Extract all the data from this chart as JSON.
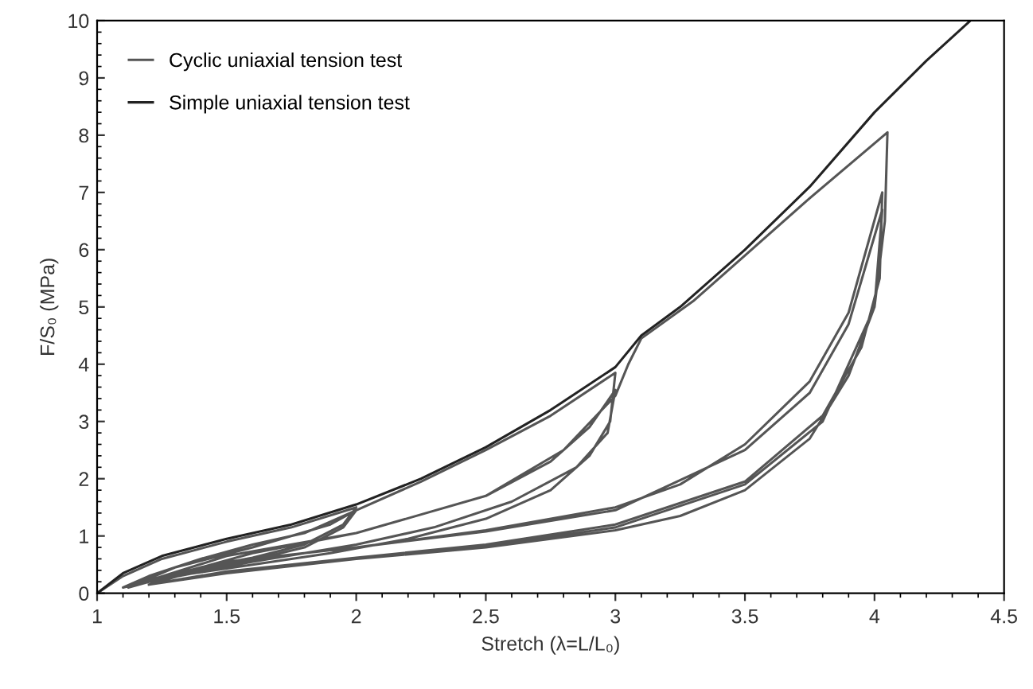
{
  "chart_data": {
    "type": "line",
    "xlabel": "Stretch (λ=L/L₀)",
    "ylabel": "F/S₀ (MPa)",
    "xlim": [
      1,
      4.5
    ],
    "ylim": [
      0,
      10
    ],
    "xticks": [
      1,
      1.5,
      2,
      2.5,
      3,
      3.5,
      4,
      4.5
    ],
    "yticks": [
      0,
      1,
      2,
      3,
      4,
      5,
      6,
      7,
      8,
      9,
      10
    ],
    "grid": false,
    "legend": "top left",
    "marker": "none",
    "line_style": "solid",
    "series": [
      {
        "name": "Cyclic uniaxial tension test",
        "color": "#555555",
        "x": [
          1,
          1.1,
          1.25,
          1.5,
          1.75,
          2,
          1.95,
          1.8,
          1.6,
          1.4,
          1.2,
          1.1,
          1.2,
          1.4,
          1.6,
          1.8,
          2,
          1.95,
          1.8,
          1.6,
          1.4,
          1.2,
          1.12,
          1.3,
          1.6,
          1.9,
          2,
          2.25,
          2.5,
          2.75,
          3,
          2.98,
          2.9,
          2.75,
          2.5,
          2.2,
          1.9,
          1.6,
          1.3,
          1.15,
          1.5,
          2,
          2.5,
          2.75,
          2.9,
          3,
          2.97,
          2.85,
          2.6,
          2.3,
          2,
          1.6,
          1.2,
          1.6,
          2,
          2.5,
          2.8,
          3,
          3.05,
          3.1,
          3.3,
          3.5,
          3.75,
          4.05,
          4.04,
          4,
          3.9,
          3.75,
          3.5,
          3.25,
          3,
          2.5,
          2,
          1.5,
          1.2,
          1.5,
          2,
          2.5,
          3,
          3.25,
          3.5,
          3.75,
          3.9,
          4.03,
          4.02,
          3.95,
          3.8,
          3.5,
          3,
          2.5,
          2,
          1.5,
          1.2,
          1.5,
          2,
          2.5,
          3,
          3.5,
          3.75,
          3.9,
          4.03,
          4,
          3.8,
          3.5,
          3,
          2.5,
          2,
          1.5,
          1.2
        ],
        "values": [
          0,
          0.3,
          0.6,
          0.9,
          1.15,
          1.5,
          1.2,
          0.85,
          0.62,
          0.45,
          0.22,
          0.1,
          0.3,
          0.6,
          0.85,
          1.05,
          1.45,
          1.15,
          0.8,
          0.58,
          0.42,
          0.2,
          0.1,
          0.45,
          0.8,
          1.2,
          1.45,
          1.95,
          2.5,
          3.1,
          3.85,
          3,
          2.4,
          1.8,
          1.3,
          0.95,
          0.7,
          0.5,
          0.3,
          0.15,
          0.65,
          1.05,
          1.7,
          2.3,
          2.9,
          3.55,
          2.8,
          2.2,
          1.6,
          1.15,
          0.85,
          0.55,
          0.2,
          0.7,
          1.05,
          1.7,
          2.5,
          3.45,
          4,
          4.45,
          5.1,
          5.9,
          6.9,
          8.05,
          6.5,
          5,
          3.8,
          2.7,
          1.8,
          1.35,
          1.1,
          0.8,
          0.6,
          0.35,
          0.15,
          0.55,
          0.8,
          1.1,
          1.5,
          1.9,
          2.6,
          3.7,
          4.9,
          7,
          5.5,
          4.3,
          3.1,
          1.95,
          1.2,
          0.85,
          0.62,
          0.38,
          0.15,
          0.55,
          0.8,
          1.08,
          1.45,
          2.5,
          3.5,
          4.7,
          6.7,
          5,
          3,
          1.9,
          1.15,
          0.82,
          0.6,
          0.36,
          0.15
        ]
      },
      {
        "name": "Simple uniaxial tension test",
        "color": "#222222",
        "x": [
          1,
          1.1,
          1.25,
          1.5,
          1.75,
          2,
          2.25,
          2.5,
          2.75,
          3,
          3.1,
          3.25,
          3.5,
          3.75,
          4,
          4.2,
          4.37
        ],
        "values": [
          0,
          0.35,
          0.65,
          0.95,
          1.2,
          1.55,
          2,
          2.55,
          3.2,
          3.95,
          4.5,
          5,
          6,
          7.1,
          8.4,
          9.3,
          10
        ]
      }
    ]
  }
}
